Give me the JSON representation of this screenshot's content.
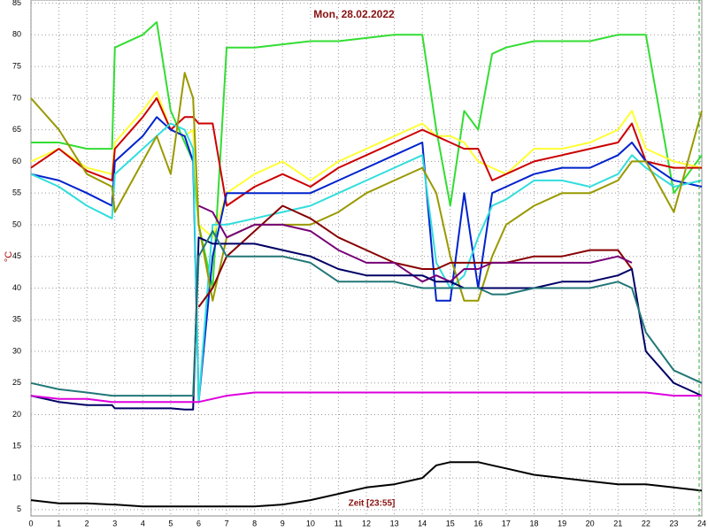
{
  "chart_data": {
    "type": "line",
    "title": "Mon, 28.02.2022",
    "y_label": "°C",
    "annotation": "Zeit [23:55]",
    "x": [
      0,
      1,
      2,
      2.9,
      3,
      4,
      4.5,
      5,
      5.5,
      5.8,
      6,
      6.5,
      7,
      8,
      9,
      10,
      11,
      12,
      13,
      14,
      14.5,
      15,
      15.5,
      16,
      16.5,
      17,
      18,
      19,
      20,
      21,
      21.5,
      22,
      23,
      24
    ],
    "series": [
      {
        "color": "#33dd33",
        "values": [
          63,
          63,
          62,
          62,
          78,
          80,
          82,
          68,
          63,
          60,
          50,
          40,
          78,
          78,
          78.5,
          79,
          79,
          79.5,
          80,
          80,
          65,
          53,
          68,
          65,
          77,
          78,
          79,
          79,
          79,
          80,
          80,
          80,
          55,
          61
        ]
      },
      {
        "color": "#ffff33",
        "values": [
          60,
          62,
          59,
          58,
          63,
          68,
          71,
          65,
          64,
          65,
          50,
          48,
          55,
          58,
          60,
          57,
          60,
          62,
          64,
          66,
          64,
          64,
          63,
          60,
          59,
          58,
          62,
          62,
          63,
          65,
          68,
          62,
          60,
          59
        ]
      },
      {
        "color": "#cc0000",
        "values": [
          59,
          62,
          58.5,
          57,
          62,
          67,
          70,
          65,
          67,
          67,
          66,
          66,
          53,
          56,
          58,
          56,
          59,
          61,
          63,
          65,
          64,
          63,
          62,
          62,
          57,
          58,
          60,
          61,
          62,
          63,
          66,
          60,
          59,
          59
        ]
      },
      {
        "color": "#0022cc",
        "values": [
          58,
          57,
          55,
          53,
          60,
          64,
          67,
          65,
          64,
          60,
          22,
          45,
          55,
          55,
          55,
          55,
          57,
          59,
          61,
          63,
          38,
          38,
          55,
          40,
          55,
          56,
          58,
          59,
          59,
          61,
          63,
          60,
          57,
          56
        ]
      },
      {
        "color": "#33dddd",
        "values": [
          58,
          56,
          53,
          51,
          58,
          62,
          64,
          66,
          65,
          62,
          22,
          50,
          50,
          51,
          52,
          53,
          55,
          57,
          59,
          61,
          44,
          40,
          42,
          48,
          53,
          54,
          57,
          57,
          56,
          58,
          61,
          59,
          56,
          57
        ]
      },
      {
        "color": "#999900",
        "values": [
          70,
          65,
          58,
          56,
          52,
          60,
          64,
          58,
          74,
          70,
          50,
          38,
          48,
          50,
          50,
          50,
          52,
          55,
          57,
          59,
          55,
          45,
          38,
          38,
          45,
          50,
          53,
          55,
          55,
          57,
          60,
          60,
          52,
          68
        ]
      },
      {
        "color": "#880000",
        "values": [
          null,
          null,
          null,
          null,
          null,
          null,
          null,
          null,
          null,
          null,
          37,
          40,
          45,
          49,
          53,
          51,
          48,
          46,
          44,
          43,
          43,
          44,
          44,
          44,
          44,
          44,
          45,
          45,
          46,
          46,
          43,
          null,
          null,
          null
        ]
      },
      {
        "color": "#770077",
        "values": [
          null,
          null,
          null,
          null,
          null,
          null,
          null,
          null,
          null,
          null,
          53,
          52,
          48,
          50,
          50,
          49,
          46,
          44,
          44,
          41,
          42,
          41,
          43,
          43,
          44,
          44,
          44,
          44,
          44,
          45,
          44,
          null,
          null,
          null
        ]
      },
      {
        "color": "#000066",
        "values": [
          23,
          22,
          21.5,
          21.5,
          21,
          21,
          21,
          21,
          20.8,
          20.8,
          48,
          47,
          47,
          47,
          46,
          45,
          43,
          42,
          42,
          42,
          41,
          41,
          40,
          40,
          40,
          40,
          40,
          41,
          41,
          42,
          43,
          30,
          25,
          23
        ]
      },
      {
        "color": "#227777",
        "values": [
          25,
          24,
          23.5,
          23,
          23,
          23,
          23,
          23,
          23,
          23,
          45,
          49,
          45,
          45,
          45,
          44,
          41,
          41,
          41,
          40,
          40,
          40,
          40,
          40,
          39,
          39,
          40,
          40,
          40,
          41,
          40,
          33,
          27,
          25
        ]
      },
      {
        "color": "#dd00dd",
        "values": [
          23,
          22.5,
          22.5,
          22,
          22,
          22,
          22,
          22,
          22,
          22,
          22,
          22.5,
          23,
          23.5,
          23.5,
          23.5,
          23.5,
          23.5,
          23.5,
          23.5,
          23.5,
          23.5,
          23.5,
          23.5,
          23.5,
          23.5,
          23.5,
          23.5,
          23.5,
          23.5,
          23.5,
          23.5,
          23,
          23
        ]
      },
      {
        "color": "#000000",
        "values": [
          6.5,
          6,
          6,
          5.8,
          5.8,
          5.5,
          5.5,
          5.5,
          5.5,
          5.5,
          5.5,
          5.5,
          5.5,
          5.5,
          5.8,
          6.5,
          7.5,
          8.5,
          9,
          10,
          12,
          12.5,
          12.5,
          12.5,
          12,
          11.5,
          10.5,
          10,
          9.5,
          9,
          9,
          9,
          8.5,
          8
        ]
      }
    ],
    "xlim": [
      0,
      24
    ],
    "xticks": [
      0,
      1,
      2,
      3,
      4,
      5,
      6,
      7,
      8,
      9,
      10,
      11,
      12,
      13,
      14,
      15,
      16,
      17,
      18,
      19,
      20,
      21,
      22,
      23,
      24
    ],
    "ylim": [
      4,
      85.5
    ],
    "yticks": [
      5,
      10,
      15,
      20,
      25,
      30,
      35,
      40,
      45,
      50,
      55,
      60,
      65,
      70,
      75,
      80,
      85
    ],
    "grid": true
  }
}
